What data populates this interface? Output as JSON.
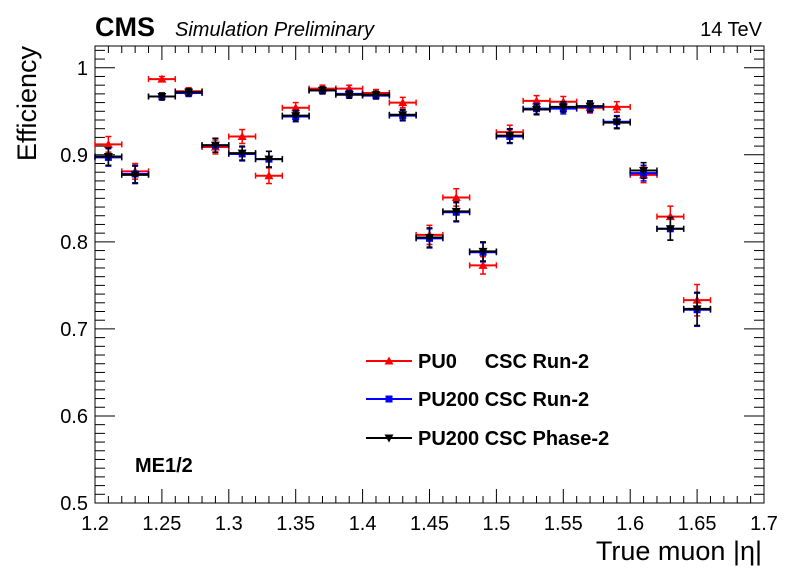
{
  "header": {
    "experiment": "CMS",
    "status": "Simulation Preliminary",
    "energy": "14 TeV"
  },
  "annotation": "ME1/2",
  "chart_data": {
    "type": "scatter",
    "xlabel": "True muon |η|",
    "ylabel": "Efficiency",
    "xlim": [
      1.2,
      1.7
    ],
    "ylim": [
      0.5,
      1.025
    ],
    "x_ticks": [
      1.2,
      1.25,
      1.3,
      1.35,
      1.4,
      1.45,
      1.5,
      1.55,
      1.6,
      1.65,
      1.7
    ],
    "x_tick_labels": [
      "1.2",
      "1.25",
      "1.3",
      "1.35",
      "1.4",
      "1.45",
      "1.5",
      "1.55",
      "1.6",
      "1.65",
      "1.7"
    ],
    "y_ticks": [
      0.5,
      0.6,
      0.7,
      0.8,
      0.9,
      1.0
    ],
    "y_tick_labels": [
      "0.5",
      "0.6",
      "0.7",
      "0.8",
      "0.9",
      "1"
    ],
    "x_bin_half_width": 0.01,
    "x": [
      1.21,
      1.23,
      1.25,
      1.27,
      1.29,
      1.31,
      1.33,
      1.35,
      1.37,
      1.39,
      1.41,
      1.43,
      1.45,
      1.47,
      1.49,
      1.51,
      1.53,
      1.55,
      1.57,
      1.59,
      1.61,
      1.63,
      1.65
    ],
    "legend_position": "bottom-right",
    "grid": false,
    "series": [
      {
        "name": "PU0     CSC Run-2",
        "marker": "triangle-up",
        "color": "#ff0000",
        "values": [
          0.912,
          0.881,
          0.987,
          0.973,
          0.909,
          0.921,
          0.876,
          0.954,
          0.976,
          0.976,
          0.971,
          0.96,
          0.808,
          0.851,
          0.773,
          0.926,
          0.962,
          0.961,
          0.954,
          0.955,
          0.877,
          0.829,
          0.733
        ],
        "errors": [
          0.009,
          0.009,
          0.003,
          0.004,
          0.008,
          0.008,
          0.009,
          0.006,
          0.004,
          0.004,
          0.004,
          0.006,
          0.011,
          0.01,
          0.01,
          0.008,
          0.006,
          0.006,
          0.006,
          0.006,
          0.009,
          0.012,
          0.018
        ]
      },
      {
        "name": "PU200 CSC Run-2",
        "marker": "square",
        "color": "#0000ff",
        "values": [
          0.897,
          0.878,
          0.967,
          0.971,
          0.911,
          0.901,
          0.895,
          0.944,
          0.974,
          0.97,
          0.968,
          0.945,
          0.804,
          0.834,
          0.788,
          0.921,
          0.953,
          0.953,
          0.955,
          0.938,
          0.879,
          0.815,
          0.722
        ],
        "errors": [
          0.01,
          0.01,
          0.004,
          0.004,
          0.008,
          0.008,
          0.009,
          0.006,
          0.004,
          0.004,
          0.004,
          0.006,
          0.011,
          0.011,
          0.011,
          0.008,
          0.006,
          0.006,
          0.006,
          0.007,
          0.009,
          0.013,
          0.019
        ]
      },
      {
        "name": "PU200 CSC Phase-2",
        "marker": "triangle-down",
        "color": "#000000",
        "values": [
          0.898,
          0.877,
          0.967,
          0.972,
          0.911,
          0.902,
          0.895,
          0.945,
          0.974,
          0.969,
          0.969,
          0.946,
          0.805,
          0.835,
          0.789,
          0.922,
          0.952,
          0.955,
          0.956,
          0.937,
          0.882,
          0.815,
          0.723
        ],
        "errors": [
          0.01,
          0.01,
          0.004,
          0.004,
          0.008,
          0.008,
          0.009,
          0.006,
          0.004,
          0.004,
          0.004,
          0.006,
          0.011,
          0.011,
          0.011,
          0.008,
          0.006,
          0.006,
          0.006,
          0.007,
          0.009,
          0.013,
          0.019
        ]
      }
    ]
  }
}
